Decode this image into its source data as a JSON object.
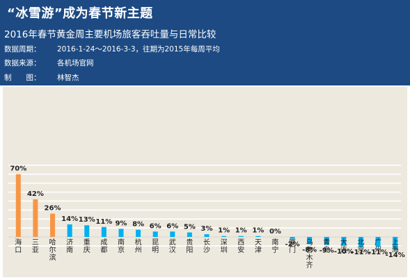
{
  "header": {
    "title": "“冰雪游”成为春节新主题",
    "subtitle": "2016年春节黄金周主要机场旅客吞吐量与日常比较",
    "meta": [
      {
        "label": "数据周期：",
        "value": "2016-1-24～2016-3-3，往期为2015年每周平均"
      },
      {
        "label": "数据来源：",
        "value": "各机场官网"
      },
      {
        "label": "制　　图：",
        "value": "林智杰"
      }
    ]
  },
  "chart_data": {
    "type": "bar",
    "title": "“冰雪游”成为春节新主题",
    "subtitle": "2016年春节黄金周主要机场旅客吞吐量与日常比较",
    "categories": [
      "海口",
      "三亚",
      "哈尔滨",
      "济南",
      "重庆",
      "成都",
      "南京",
      "杭州",
      "昆明",
      "武汉",
      "贵阳",
      "长沙",
      "深圳",
      "西安",
      "天津",
      "南宁",
      "厦门",
      "乌鲁木齐",
      "青岛",
      "大连",
      "北京",
      "广州",
      "上海"
    ],
    "values": [
      70,
      42,
      26,
      14,
      13,
      11,
      9,
      8,
      6,
      6,
      5,
      3,
      1,
      1,
      1,
      0,
      -2,
      -8,
      -9,
      -10,
      -11,
      -11,
      -14
    ],
    "labels": [
      "70%",
      "42%",
      "26%",
      "14%",
      "13%",
      "11%",
      "9%",
      "8%",
      "6%",
      "6%",
      "5%",
      "3%",
      "1%",
      "1%",
      "1%",
      "0%",
      "-2%",
      "-8%",
      "-9%",
      "-10%",
      "-11%",
      "-11%",
      "-14%"
    ],
    "highlight_count": 3,
    "colors": {
      "highlight": "#f79646",
      "normal": "#00b0f0",
      "background": "#ede9df",
      "grid": "#ffffff",
      "header": "#1d4a82"
    },
    "ylim": [
      -20,
      80
    ],
    "grid": true,
    "xlabel": "",
    "ylabel": ""
  }
}
